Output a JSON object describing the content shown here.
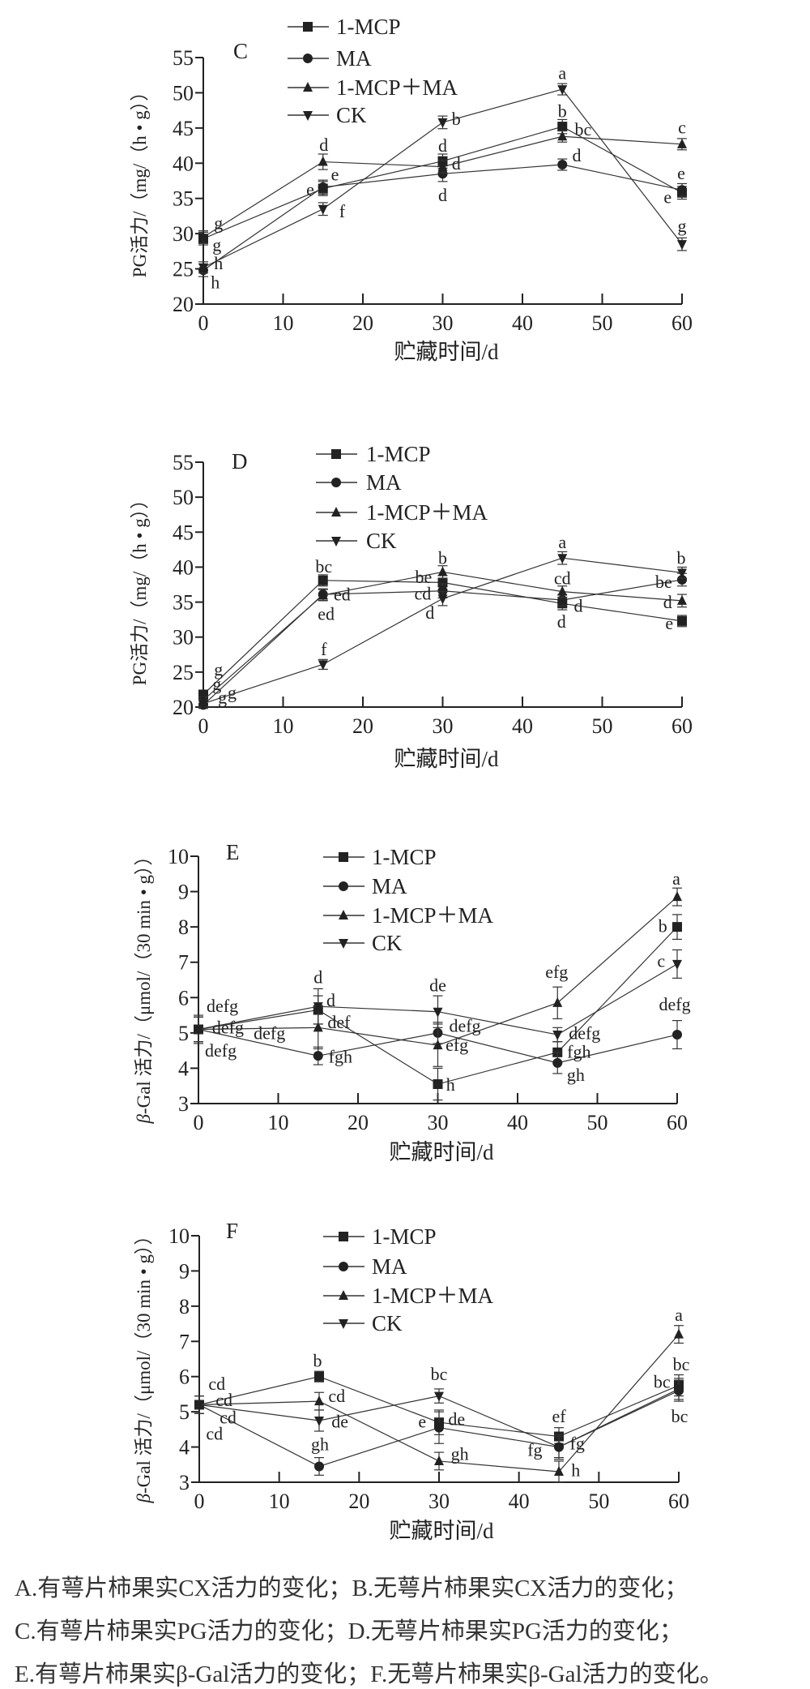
{
  "legend_names": [
    "1-MCP",
    "MA",
    "1-MCP＋MA",
    "CK"
  ],
  "chart_data": [
    {
      "type": "line",
      "panel_label": "C",
      "xlabel": "贮藏时间/d",
      "ylabel": "PG活力/（mg/（h • g））",
      "ylabel_symbol": "",
      "x": [
        0,
        15,
        30,
        45,
        60
      ],
      "xlim": [
        0,
        60
      ],
      "xticks": [
        0,
        10,
        20,
        30,
        40,
        50,
        60
      ],
      "ylim": [
        20,
        55
      ],
      "yticks": [
        20,
        25,
        30,
        35,
        40,
        45,
        50,
        55
      ],
      "grid": false,
      "legend_position": "top-center",
      "series": [
        {
          "name": "1-MCP",
          "marker": "square",
          "values": [
            29.3,
            36.4,
            40.3,
            45.2,
            35.8
          ],
          "errors": [
            0.9,
            1.0,
            1.0,
            1.0,
            0.9
          ]
        },
        {
          "name": "MA",
          "marker": "circle",
          "values": [
            24.8,
            36.6,
            38.5,
            39.8,
            36.2
          ],
          "errors": [
            0.9,
            1.0,
            1.1,
            0.8,
            0.9
          ]
        },
        {
          "name": "1-MCP＋MA",
          "marker": "triangle-up",
          "values": [
            29.5,
            40.2,
            39.5,
            43.8,
            42.7
          ],
          "errors": [
            0.9,
            1.1,
            0.9,
            0.8,
            0.8
          ]
        },
        {
          "name": "CK",
          "marker": "triangle-down",
          "values": [
            25.2,
            33.5,
            45.8,
            50.5,
            28.5
          ],
          "errors": [
            0.8,
            0.9,
            0.9,
            0.8,
            0.9
          ]
        }
      ],
      "annotations": [
        {
          "text": "g",
          "x": 1.9,
          "y": 31.5
        },
        {
          "text": "g",
          "x": 1.7,
          "y": 28.4
        },
        {
          "text": "h",
          "x": 1.9,
          "y": 25.8
        },
        {
          "text": "h",
          "x": 1.5,
          "y": 23.1
        },
        {
          "text": "d",
          "x": 15.1,
          "y": 42.6
        },
        {
          "text": "e",
          "x": 16.5,
          "y": 38.4
        },
        {
          "text": "e",
          "x": 13.4,
          "y": 36.3
        },
        {
          "text": "f",
          "x": 17.4,
          "y": 33.2
        },
        {
          "text": "b",
          "x": 31.7,
          "y": 46.3
        },
        {
          "text": "d",
          "x": 30,
          "y": 42.5
        },
        {
          "text": "d",
          "x": 31.7,
          "y": 40
        },
        {
          "text": "d",
          "x": 30,
          "y": 35.5
        },
        {
          "text": "a",
          "x": 45,
          "y": 52.8
        },
        {
          "text": "b",
          "x": 45,
          "y": 47.4
        },
        {
          "text": "bc",
          "x": 47.6,
          "y": 44.8
        },
        {
          "text": "d",
          "x": 46.8,
          "y": 41.1
        },
        {
          "text": "c",
          "x": 60,
          "y": 45.1
        },
        {
          "text": "e",
          "x": 59.9,
          "y": 38.6
        },
        {
          "text": "e",
          "x": 58.2,
          "y": 35.2
        },
        {
          "text": "g",
          "x": 60,
          "y": 31.1
        }
      ]
    },
    {
      "type": "line",
      "panel_label": "D",
      "xlabel": "贮藏时间/d",
      "ylabel": "PG活力/（mg/（h • g））",
      "ylabel_symbol": "",
      "x": [
        0,
        15,
        30,
        45,
        60
      ],
      "xlim": [
        0,
        60
      ],
      "xticks": [
        0,
        10,
        20,
        30,
        40,
        50,
        60
      ],
      "ylim": [
        20,
        55
      ],
      "yticks": [
        20,
        25,
        30,
        35,
        40,
        45,
        50,
        55
      ],
      "grid": false,
      "legend_position": "top-center",
      "series": [
        {
          "name": "1-MCP",
          "marker": "square",
          "values": [
            21.8,
            38.1,
            37.8,
            34.8,
            32.3
          ],
          "errors": [
            0.6,
            0.8,
            1.0,
            0.9,
            0.8
          ]
        },
        {
          "name": "MA",
          "marker": "circle",
          "values": [
            20.3,
            36.1,
            36.6,
            35.3,
            38.2
          ],
          "errors": [
            0.5,
            0.8,
            1.0,
            0.8,
            0.9
          ]
        },
        {
          "name": "1-MCP＋MA",
          "marker": "triangle-up",
          "values": [
            21.0,
            36.0,
            39.3,
            36.5,
            35.2
          ],
          "errors": [
            0.5,
            0.8,
            0.9,
            0.8,
            0.9
          ]
        },
        {
          "name": "CK",
          "marker": "triangle-down",
          "values": [
            20.5,
            26.1,
            35.5,
            41.3,
            39.2
          ],
          "errors": [
            0.5,
            0.7,
            1.0,
            0.9,
            0.8
          ]
        }
      ],
      "annotations": [
        {
          "text": "g",
          "x": 1.9,
          "y": 25.4
        },
        {
          "text": "g",
          "x": 1.7,
          "y": 23.3
        },
        {
          "text": "g",
          "x": 2.4,
          "y": 21.4
        },
        {
          "text": "g",
          "x": 3.6,
          "y": 22.1
        },
        {
          "text": "bc",
          "x": 15.1,
          "y": 40.1
        },
        {
          "text": "ed",
          "x": 17.4,
          "y": 36.1
        },
        {
          "text": "ed",
          "x": 15.4,
          "y": 33.3
        },
        {
          "text": "f",
          "x": 15.1,
          "y": 28.3
        },
        {
          "text": "b",
          "x": 30,
          "y": 41.3
        },
        {
          "text": "be",
          "x": 27.6,
          "y": 38.6
        },
        {
          "text": "cd",
          "x": 27.5,
          "y": 36.2
        },
        {
          "text": "d",
          "x": 28.4,
          "y": 33.5
        },
        {
          "text": "a",
          "x": 45,
          "y": 43.6
        },
        {
          "text": "cd",
          "x": 45,
          "y": 38.4
        },
        {
          "text": "d",
          "x": 47,
          "y": 34.5
        },
        {
          "text": "d",
          "x": 44.9,
          "y": 32.2
        },
        {
          "text": "b",
          "x": 59.9,
          "y": 41.3
        },
        {
          "text": "be",
          "x": 57.7,
          "y": 37.9
        },
        {
          "text": "d",
          "x": 58.2,
          "y": 35
        },
        {
          "text": "e",
          "x": 58.4,
          "y": 32
        }
      ]
    },
    {
      "type": "line",
      "panel_label": "E",
      "xlabel": "贮藏时间/d",
      "ylabel": "-Gal 活力/（μmol/（30 min • g））",
      "ylabel_symbol": "β",
      "x": [
        0,
        15,
        30,
        45,
        60
      ],
      "xlim": [
        0,
        60
      ],
      "xticks": [
        0,
        10,
        20,
        30,
        40,
        50,
        60
      ],
      "ylim": [
        3,
        10
      ],
      "yticks": [
        3,
        4,
        5,
        6,
        7,
        8,
        9,
        10
      ],
      "grid": false,
      "legend_position": "top-center",
      "series": [
        {
          "name": "1-MCP",
          "marker": "square",
          "values": [
            5.1,
            5.65,
            3.55,
            4.45,
            8.0
          ],
          "errors": [
            0.35,
            0.4,
            0.45,
            0.3,
            0.35
          ]
        },
        {
          "name": "MA",
          "marker": "circle",
          "values": [
            5.1,
            4.35,
            5.0,
            4.15,
            4.95
          ],
          "errors": [
            0.35,
            0.25,
            0.3,
            0.3,
            0.4
          ]
        },
        {
          "name": "1-MCP＋MA",
          "marker": "triangle-up",
          "values": [
            5.1,
            5.15,
            4.65,
            5.85,
            8.85
          ],
          "errors": [
            0.35,
            0.6,
            0.6,
            0.45,
            0.25
          ]
        },
        {
          "name": "CK",
          "marker": "triangle-down",
          "values": [
            5.1,
            5.75,
            5.6,
            4.95,
            6.95
          ],
          "errors": [
            0.4,
            0.5,
            0.45,
            0.2,
            0.4
          ]
        }
      ],
      "annotations": [
        {
          "text": "defg",
          "x": 3.0,
          "y": 5.77
        },
        {
          "text": "defg",
          "x": 3.7,
          "y": 5.16
        },
        {
          "text": "defg",
          "x": 8.9,
          "y": 5.0
        },
        {
          "text": "defg",
          "x": 2.8,
          "y": 4.5
        },
        {
          "text": "d",
          "x": 15,
          "y": 6.58
        },
        {
          "text": "d",
          "x": 16.6,
          "y": 5.93
        },
        {
          "text": "def",
          "x": 17.6,
          "y": 5.31
        },
        {
          "text": "fgh",
          "x": 17.8,
          "y": 4.33
        },
        {
          "text": "de",
          "x": 30,
          "y": 6.35
        },
        {
          "text": "defg",
          "x": 33.4,
          "y": 5.2
        },
        {
          "text": "efg",
          "x": 32.4,
          "y": 4.66
        },
        {
          "text": "h",
          "x": 31.6,
          "y": 3.54
        },
        {
          "text": "efg",
          "x": 44.9,
          "y": 6.73
        },
        {
          "text": "defg",
          "x": 48.4,
          "y": 5.0
        },
        {
          "text": "fgh",
          "x": 47.7,
          "y": 4.47
        },
        {
          "text": "gh",
          "x": 47.3,
          "y": 3.82
        },
        {
          "text": "a",
          "x": 59.9,
          "y": 9.37
        },
        {
          "text": "b",
          "x": 58.2,
          "y": 8.03
        },
        {
          "text": "c",
          "x": 58,
          "y": 7.04
        },
        {
          "text": "defg",
          "x": 59.7,
          "y": 5.81
        }
      ]
    },
    {
      "type": "line",
      "panel_label": "F",
      "xlabel": "贮藏时间/d",
      "ylabel": "-Gal 活力/（μmol/（30 min • g））",
      "ylabel_symbol": "β",
      "x": [
        0,
        15,
        30,
        45,
        60
      ],
      "xlim": [
        0,
        60
      ],
      "xticks": [
        0,
        10,
        20,
        30,
        40,
        50,
        60
      ],
      "ylim": [
        3,
        10
      ],
      "yticks": [
        3,
        4,
        5,
        6,
        7,
        8,
        9,
        10
      ],
      "grid": false,
      "legend_position": "top-center",
      "series": [
        {
          "name": "1-MCP",
          "marker": "square",
          "values": [
            5.2,
            6.0,
            4.7,
            4.3,
            5.75
          ],
          "errors": [
            0.25,
            0.15,
            0.35,
            0.25,
            0.3
          ]
        },
        {
          "name": "MA",
          "marker": "circle",
          "values": [
            5.2,
            3.45,
            4.55,
            4.0,
            5.6
          ],
          "errors": [
            0.25,
            0.25,
            0.45,
            0.3,
            0.3
          ]
        },
        {
          "name": "1-MCP＋MA",
          "marker": "triangle-up",
          "values": [
            5.2,
            5.3,
            3.6,
            3.3,
            7.2
          ],
          "errors": [
            0.25,
            0.25,
            0.25,
            0.3,
            0.25
          ]
        },
        {
          "name": "CK",
          "marker": "triangle-down",
          "values": [
            5.2,
            4.75,
            5.45,
            4.0,
            5.65
          ],
          "errors": [
            0.25,
            0.3,
            0.2,
            0.35,
            0.3
          ]
        }
      ],
      "annotations": [
        {
          "text": "cd",
          "x": 2.2,
          "y": 5.8
        },
        {
          "text": "cd",
          "x": 3.1,
          "y": 5.34
        },
        {
          "text": "cd",
          "x": 3.6,
          "y": 4.84
        },
        {
          "text": "cd",
          "x": 1.9,
          "y": 4.38
        },
        {
          "text": "b",
          "x": 14.8,
          "y": 6.45
        },
        {
          "text": "cd",
          "x": 17.2,
          "y": 5.45
        },
        {
          "text": "de",
          "x": 17.6,
          "y": 4.73
        },
        {
          "text": "gh",
          "x": 15.1,
          "y": 4.08
        },
        {
          "text": "bc",
          "x": 30,
          "y": 6.07
        },
        {
          "text": "e",
          "x": 27.9,
          "y": 4.73
        },
        {
          "text": "de",
          "x": 32.2,
          "y": 4.8
        },
        {
          "text": "gh",
          "x": 32.6,
          "y": 3.81
        },
        {
          "text": "ef",
          "x": 45,
          "y": 4.88
        },
        {
          "text": "fg",
          "x": 42,
          "y": 3.92
        },
        {
          "text": "fg",
          "x": 47.3,
          "y": 4.11
        },
        {
          "text": "h",
          "x": 47.1,
          "y": 3.35
        },
        {
          "text": "a",
          "x": 60,
          "y": 7.75
        },
        {
          "text": "bc",
          "x": 60.3,
          "y": 6.35
        },
        {
          "text": "bc",
          "x": 57.9,
          "y": 5.86
        },
        {
          "text": "bc",
          "x": 60.1,
          "y": 4.88
        }
      ]
    }
  ],
  "caption": [
    "A.有萼片柿果实CX活力的变化；B.无萼片柿果实CX活力的变化；",
    "C.有萼片柿果实PG活力的变化；D.无萼片柿果实PG活力的变化；",
    "E.有萼片柿果实β-Gal活力的变化；F.无萼片柿果实β-Gal活力的变化。"
  ]
}
